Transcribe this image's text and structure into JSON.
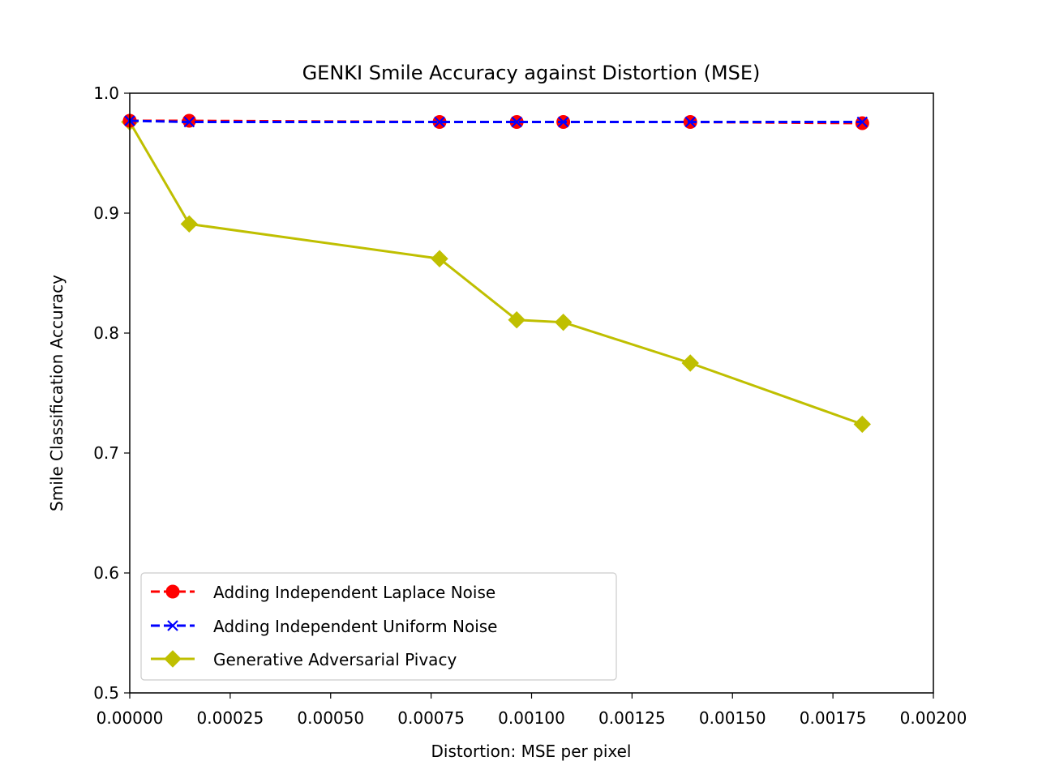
{
  "chart_data": {
    "type": "line",
    "title": "GENKI Smile Accuracy against Distortion (MSE)",
    "xlabel": "Distortion: MSE per pixel",
    "ylabel": "Smile Classification Accuracy",
    "xlim": [
      0.0,
      0.002
    ],
    "ylim": [
      0.5,
      1.0
    ],
    "xticks": [
      0.0,
      0.00025,
      0.0005,
      0.00075,
      0.001,
      0.00125,
      0.0015,
      0.00175,
      0.002
    ],
    "xtick_labels": [
      "0.00000",
      "0.00025",
      "0.00050",
      "0.00075",
      "0.00100",
      "0.00125",
      "0.00150",
      "0.00175",
      "0.00200"
    ],
    "yticks": [
      0.5,
      0.6,
      0.7,
      0.8,
      0.9,
      1.0
    ],
    "ytick_labels": [
      "0.5",
      "0.6",
      "0.7",
      "0.8",
      "0.9",
      "1.0"
    ],
    "grid": false,
    "legend_position": "lower-left",
    "series": [
      {
        "name": "Adding Independent Laplace Noise",
        "color": "#ff0000",
        "line_style": "dashed",
        "marker": "circle",
        "x": [
          0.0,
          0.000148,
          0.000771,
          0.000963,
          0.001079,
          0.001395,
          0.001823
        ],
        "y": [
          0.977,
          0.977,
          0.976,
          0.976,
          0.976,
          0.976,
          0.975
        ]
      },
      {
        "name": "Adding Independent Uniform Noise",
        "color": "#0000ff",
        "line_style": "dashed",
        "marker": "x",
        "x": [
          0.0,
          0.000148,
          0.000771,
          0.000963,
          0.001079,
          0.001395,
          0.001823
        ],
        "y": [
          0.977,
          0.976,
          0.976,
          0.976,
          0.976,
          0.976,
          0.976
        ]
      },
      {
        "name": "Generative Adversarial Pivacy",
        "color": "#bfbf00",
        "line_style": "solid",
        "marker": "diamond",
        "x": [
          0.0,
          0.000148,
          0.000771,
          0.000963,
          0.001079,
          0.001395,
          0.001823
        ],
        "y": [
          0.976,
          0.891,
          0.862,
          0.811,
          0.809,
          0.775,
          0.724
        ]
      }
    ]
  }
}
